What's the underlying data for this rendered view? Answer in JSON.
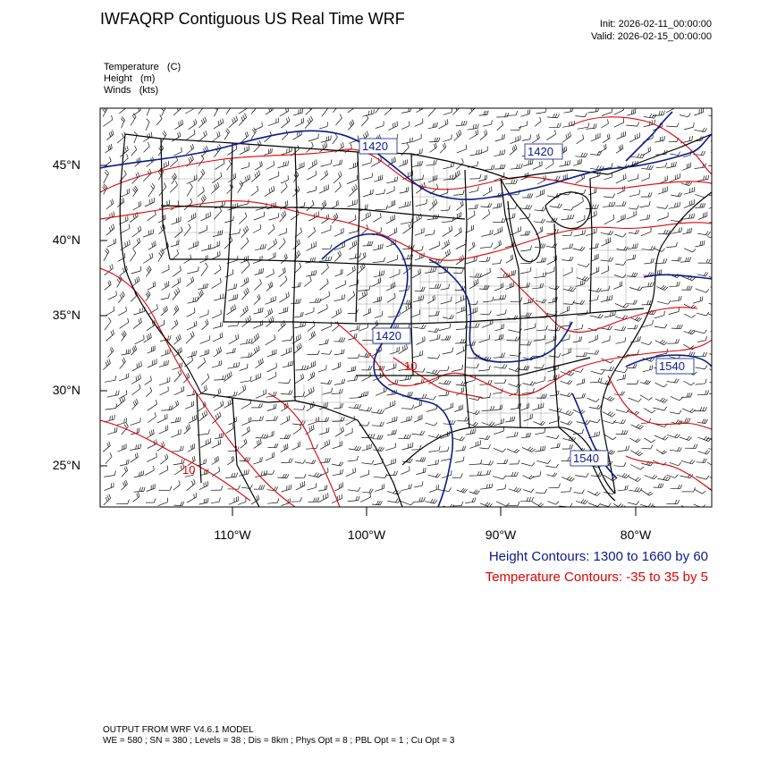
{
  "header": {
    "title": "IWFAQRP Contiguous US Real Time WRF",
    "init": "Init: 2026-02-11_00:00:00",
    "valid": "Valid: 2026-02-15_00:00:00"
  },
  "fields": [
    "Temperature   (C)",
    "Height   (m)",
    "Winds   (kts)"
  ],
  "map": {
    "lat_labels": [
      "45°N",
      "40°N",
      "35°N",
      "30°N",
      "25°N"
    ],
    "lon_labels": [
      "110°W",
      "100°W",
      "90°W",
      "80°W"
    ],
    "height_labels": [
      "1420",
      "1420",
      "1420",
      "1540",
      "1540"
    ],
    "temp_labels": [
      "10",
      "10"
    ],
    "colors": {
      "height": "#0a1a8c",
      "temperature": "#e60000",
      "boundaries": "#000000",
      "barbs": "#111111"
    }
  },
  "legend": {
    "height": "Height Contours: 1300 to 1660 by 60",
    "temperature": "Temperature Contours: -35 to 35 by 5"
  },
  "footer": {
    "line1": "OUTPUT FROM WRF V4.6.1 MODEL",
    "line2": "WE = 580 ; SN = 380 ; Levels = 38 ; Dis = 8km ; Phys Opt = 8 ; PBL Opt = 1 ; Cu Opt = 3"
  }
}
